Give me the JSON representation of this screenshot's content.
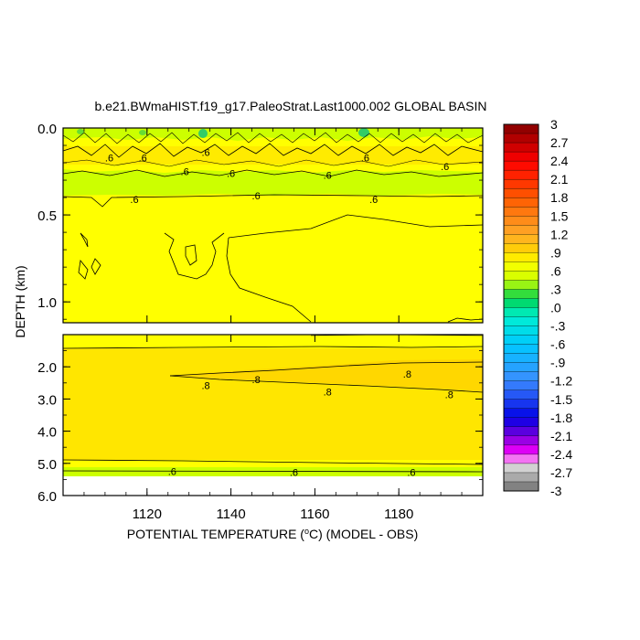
{
  "chart_data": {
    "type": "contour",
    "title": "b.e21.BWmaHIST.f19_g17.PaleoStrat.Last1000.002 GLOBAL BASIN",
    "xlabel_prefix": "POTENTIAL TEMPERATURE (",
    "xlabel_unit_sup": "o",
    "xlabel_suffix": "C) (MODEL - OBS)",
    "ylabel": "DEPTH (km)",
    "xlim": [
      1100,
      1200
    ],
    "x_ticks": [
      1120,
      1140,
      1160,
      1180
    ],
    "x_tick_labels": [
      "1120",
      "1140",
      "1160",
      "1180"
    ],
    "upper_panel": {
      "ylim": [
        0.0,
        1.12
      ],
      "y_ticks": [
        0.0,
        0.5,
        1.0
      ],
      "y_tick_labels": [
        "0.0",
        "0.5",
        "1.0"
      ],
      "contour_labels": [
        {
          "x": 1111,
          "depth": 0.17,
          "text": ".6"
        },
        {
          "x": 1119,
          "depth": 0.17,
          "text": ".6"
        },
        {
          "x": 1129,
          "depth": 0.25,
          "text": ".6"
        },
        {
          "x": 1134,
          "depth": 0.14,
          "text": ".6"
        },
        {
          "x": 1140,
          "depth": 0.26,
          "text": ".6"
        },
        {
          "x": 1163,
          "depth": 0.27,
          "text": ".6"
        },
        {
          "x": 1172,
          "depth": 0.17,
          "text": ".6"
        },
        {
          "x": 1191,
          "depth": 0.22,
          "text": ".6"
        },
        {
          "x": 1117,
          "depth": 0.41,
          "text": ".6"
        },
        {
          "x": 1146,
          "depth": 0.39,
          "text": ".6"
        },
        {
          "x": 1174,
          "depth": 0.41,
          "text": ".6"
        }
      ]
    },
    "lower_panel": {
      "ylim": [
        1.0,
        6.0
      ],
      "y_ticks": [
        2.0,
        3.0,
        4.0,
        5.0,
        6.0
      ],
      "y_tick_labels": [
        "2.0",
        "3.0",
        "4.0",
        "5.0",
        "6.0"
      ],
      "contour_labels": [
        {
          "x": 1146,
          "depth": 2.39,
          "text": ".8"
        },
        {
          "x": 1134,
          "depth": 2.58,
          "text": ".8"
        },
        {
          "x": 1163,
          "depth": 2.77,
          "text": ".8"
        },
        {
          "x": 1182,
          "depth": 2.22,
          "text": ".8"
        },
        {
          "x": 1192,
          "depth": 2.86,
          "text": ".8"
        },
        {
          "x": 1126,
          "depth": 5.25,
          "text": ".6"
        },
        {
          "x": 1155,
          "depth": 5.27,
          "text": ".6"
        },
        {
          "x": 1183,
          "depth": 5.27,
          "text": ".6"
        }
      ]
    },
    "colorbar": {
      "min": -3.0,
      "max": 3.0,
      "step": 0.15,
      "labels": [
        "3",
        "2.7",
        "2.4",
        "2.1",
        "1.8",
        "1.5",
        "1.2",
        ".9",
        ".6",
        ".3",
        ".0",
        "-.3",
        "-.6",
        "-.9",
        "-1.2",
        "-1.5",
        "-1.8",
        "-2.1",
        "-2.4",
        "-2.7",
        "-3"
      ]
    }
  }
}
